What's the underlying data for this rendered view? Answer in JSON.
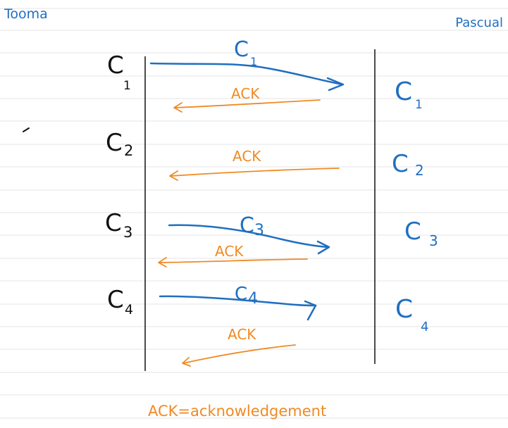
{
  "labels": {
    "left_party": "Tooma",
    "right_party": "Pascual",
    "legend": "ACK=acknowledgement"
  },
  "left_chunks": [
    {
      "c": "C",
      "sub": "1"
    },
    {
      "c": "C",
      "sub": "2"
    },
    {
      "c": "C",
      "sub": "3"
    },
    {
      "c": "C",
      "sub": "4"
    }
  ],
  "right_chunks": [
    {
      "c": "C",
      "sub": "1"
    },
    {
      "c": "C",
      "sub": "2"
    },
    {
      "c": "C",
      "sub": "3"
    },
    {
      "c": "C",
      "sub": "4"
    }
  ],
  "message_labels": [
    {
      "c": "C",
      "sub": "1"
    },
    {
      "c": "C",
      "sub": "3"
    },
    {
      "c": "C",
      "sub": "4"
    }
  ],
  "ack_labels": [
    "ACK",
    "ACK",
    "ACK",
    "ACK"
  ],
  "colors": {
    "blue": "#1f6fc0",
    "orange": "#f08a24",
    "black": "#111111",
    "ruling": "#e6e6e6"
  }
}
